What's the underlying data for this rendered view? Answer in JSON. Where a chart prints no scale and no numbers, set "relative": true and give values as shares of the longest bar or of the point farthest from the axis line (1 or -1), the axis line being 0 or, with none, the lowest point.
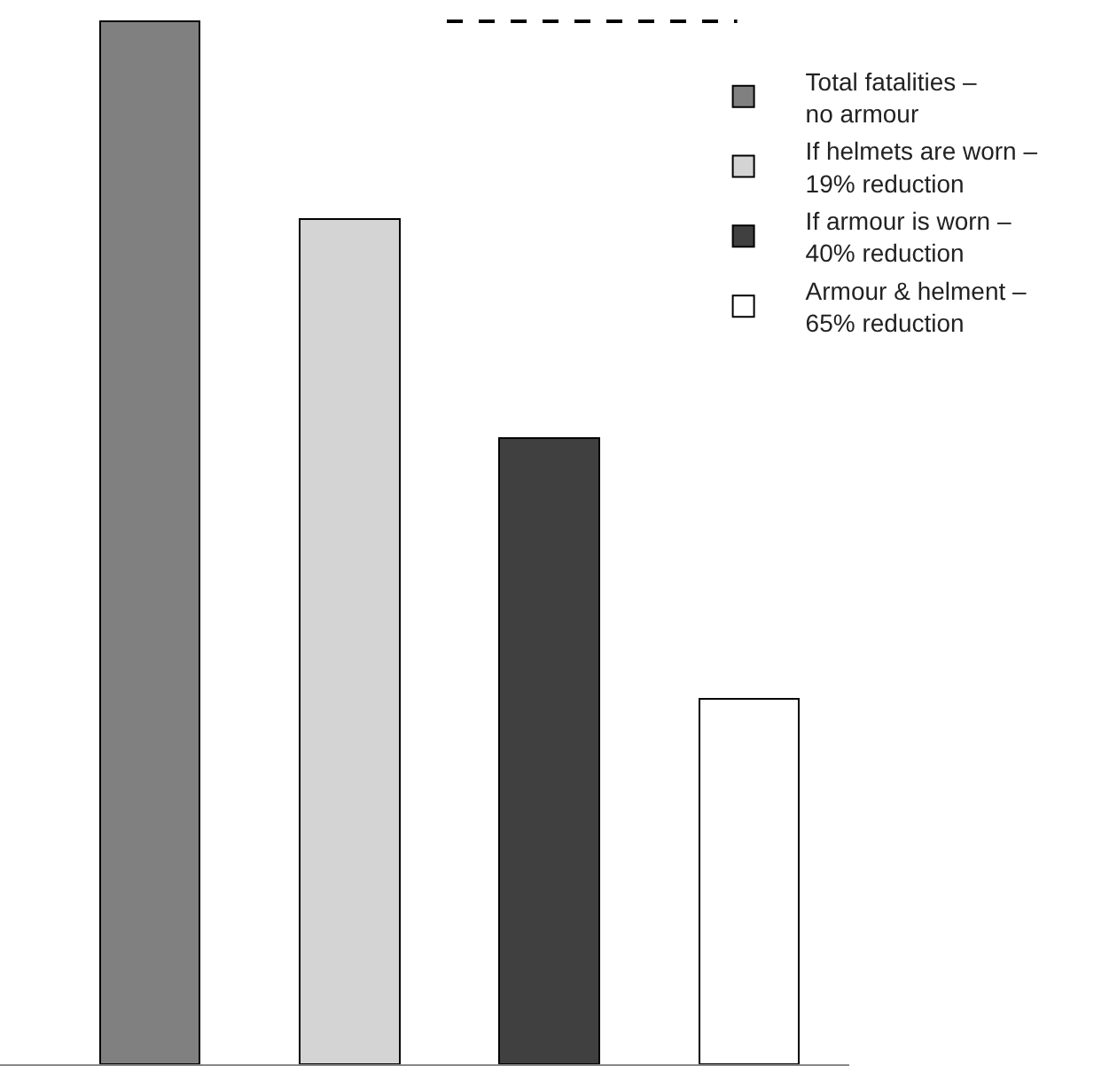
{
  "chart_data": {
    "type": "bar",
    "relative": true,
    "stacked": true,
    "categories": [
      null,
      null,
      null,
      null
    ],
    "series": [
      {
        "name": "Total fatalities – no armour",
        "color": "#808080",
        "values": [
          1,
          null,
          null,
          null
        ]
      },
      {
        "name": "If helmets are worn – 19% reduction",
        "color": "#d4d4d4",
        "values": [
          null,
          0.81,
          null,
          null
        ]
      },
      {
        "name": "If armour is worn – 40% reduction",
        "color": "#404040",
        "values": [
          null,
          null,
          0.6,
          null
        ]
      },
      {
        "name": "Armour & helment – 65% reduction",
        "color": "#ffffff",
        "values": [
          null,
          null,
          null,
          0.35
        ]
      }
    ],
    "ref_lines": [
      {
        "axis": "y",
        "value": 1,
        "line_style": "dashed",
        "color": "#000000"
      }
    ],
    "legend": "top right"
  }
}
